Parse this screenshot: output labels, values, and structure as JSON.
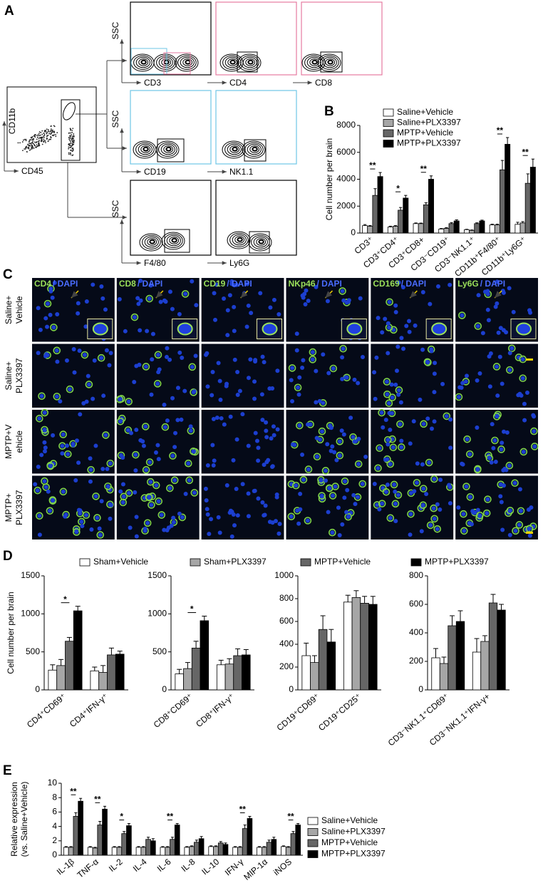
{
  "panel_labels": [
    "A",
    "B",
    "C",
    "D",
    "E"
  ],
  "flow": {
    "dot_plot": {
      "y": "CD11b",
      "x": "CD45"
    },
    "gates": [
      {
        "y": "SSC",
        "x": "CD3"
      },
      {
        "x": "CD4"
      },
      {
        "x": "CD8"
      },
      {
        "y": "SSC",
        "x": "CD19"
      },
      {
        "x": "NK1.1"
      },
      {
        "y": "SSC",
        "x": "F4/80"
      },
      {
        "x": "Ly6G"
      }
    ]
  },
  "microscopy": {
    "stains": [
      "CD4",
      "CD8",
      "CD19",
      "NKp46",
      "CD169",
      "Ly6G"
    ],
    "counterstain": "/ DAPI",
    "rows": [
      [
        "Saline+",
        "Vehicle"
      ],
      [
        "Saline+",
        "PLX3397"
      ],
      [
        "MPTP+V",
        "ehicle"
      ],
      [
        "MPTP+",
        "PLX3397"
      ]
    ]
  },
  "chart_data": [
    {
      "type": "bar",
      "ylabel": [
        "Cell number per brain"
      ],
      "legend": "top",
      "categories": [
        "CD3⁺",
        "CD3⁺CD4⁺",
        "CD3⁺CD8+",
        "CD3⁻CD19⁺",
        "CD3⁻NK1.1⁺",
        "CD11b⁺F4/80⁺",
        "CD11b⁺Ly6G⁺"
      ],
      "ylim": [
        0,
        8000
      ],
      "yticks": [
        0,
        2000,
        4000,
        6000,
        8000
      ],
      "series": [
        {
          "name": "Saline+Vehicle",
          "color": "#ffffff",
          "values": [
            550,
            450,
            700,
            300,
            250,
            600,
            650
          ],
          "errors": [
            80,
            60,
            50,
            40,
            30,
            60,
            150
          ]
        },
        {
          "name": "Saline+PLX3397",
          "color": "#a6a6a6",
          "values": [
            500,
            500,
            700,
            350,
            200,
            600,
            750
          ],
          "errors": [
            60,
            50,
            40,
            50,
            30,
            60,
            100
          ]
        },
        {
          "name": "MPTP+Vehicle",
          "color": "#666666",
          "values": [
            2800,
            1700,
            2100,
            700,
            700,
            4700,
            3700
          ],
          "errors": [
            500,
            200,
            150,
            80,
            60,
            700,
            700
          ]
        },
        {
          "name": "MPTP+PLX3397",
          "color": "#000000",
          "values": [
            4200,
            2600,
            4000,
            900,
            900,
            6600,
            4900
          ],
          "errors": [
            300,
            200,
            250,
            80,
            60,
            500,
            600
          ]
        }
      ],
      "annotations": [
        {
          "text": "**",
          "category": 0
        },
        {
          "text": "*",
          "category": 1
        },
        {
          "text": "**",
          "category": 2
        },
        {
          "text": "**",
          "category": 5
        },
        {
          "text": "**",
          "category": 6
        }
      ]
    },
    {
      "type": "bar",
      "ylabel": [
        "Cell number per brain"
      ],
      "legend": "top",
      "categories": [
        "CD4⁺CD69⁺",
        "CD4⁺IFN-γ⁺"
      ],
      "ylim": [
        0,
        1500
      ],
      "yticks": [
        0,
        500,
        1000,
        1500
      ],
      "series": [
        {
          "name": "Sham+Vehicle",
          "color": "#ffffff",
          "values": [
            260,
            250
          ],
          "errors": [
            70,
            50
          ]
        },
        {
          "name": "Sham+PLX3397",
          "color": "#a6a6a6",
          "values": [
            320,
            230
          ],
          "errors": [
            80,
            90
          ]
        },
        {
          "name": "MPTP+Vehicle",
          "color": "#666666",
          "values": [
            640,
            460
          ],
          "errors": [
            50,
            90
          ]
        },
        {
          "name": "MPTP+PLX3397",
          "color": "#000000",
          "values": [
            1040,
            470
          ],
          "errors": [
            60,
            40
          ]
        }
      ],
      "annotations": [
        {
          "text": "*",
          "category": 0
        }
      ]
    },
    {
      "type": "bar",
      "categories": [
        "CD8⁺CD69⁺",
        "CD8⁺IFN-γ⁺"
      ],
      "ylim": [
        0,
        1500
      ],
      "yticks": [
        0,
        500,
        1000,
        1500
      ],
      "series": [
        {
          "color": "#ffffff",
          "values": [
            210,
            330
          ],
          "errors": [
            60,
            60
          ]
        },
        {
          "color": "#a6a6a6",
          "values": [
            280,
            340
          ],
          "errors": [
            80,
            70
          ]
        },
        {
          "color": "#666666",
          "values": [
            550,
            450
          ],
          "errors": [
            90,
            90
          ]
        },
        {
          "color": "#000000",
          "values": [
            910,
            460
          ],
          "errors": [
            60,
            70
          ]
        }
      ],
      "annotations": [
        {
          "text": "*",
          "category": 0
        }
      ]
    },
    {
      "type": "bar",
      "categories": [
        "CD19⁺CD69⁺",
        "CD19⁺CD25⁺"
      ],
      "ylim": [
        0,
        1000
      ],
      "yticks": [
        0,
        200,
        400,
        600,
        800,
        1000
      ],
      "series": [
        {
          "color": "#ffffff",
          "values": [
            300,
            770
          ],
          "errors": [
            110,
            60
          ]
        },
        {
          "color": "#a6a6a6",
          "values": [
            240,
            810
          ],
          "errors": [
            60,
            60
          ]
        },
        {
          "color": "#666666",
          "values": [
            530,
            760
          ],
          "errors": [
            120,
            60
          ]
        },
        {
          "color": "#000000",
          "values": [
            420,
            750
          ],
          "errors": [
            110,
            70
          ]
        }
      ]
    },
    {
      "type": "bar",
      "categories": [
        "CD3⁻NK1.1⁺CD69⁺",
        "CD3⁻NK1.1⁺IFN-γ+"
      ],
      "ylim": [
        0,
        800
      ],
      "yticks": [
        0,
        200,
        400,
        600,
        800
      ],
      "series": [
        {
          "color": "#ffffff",
          "values": [
            225,
            265
          ],
          "errors": [
            65,
            95
          ]
        },
        {
          "color": "#a6a6a6",
          "values": [
            185,
            340
          ],
          "errors": [
            45,
            40
          ]
        },
        {
          "color": "#666666",
          "values": [
            450,
            610
          ],
          "errors": [
            70,
            60
          ]
        },
        {
          "color": "#000000",
          "values": [
            480,
            560
          ],
          "errors": [
            75,
            40
          ]
        }
      ]
    },
    {
      "type": "bar",
      "ylabel": [
        "Relative expression",
        "(vs. Saline+Vehicle)"
      ],
      "legend": "right",
      "categories": [
        "IL-1β",
        "TNF-α",
        "IL-2",
        "IL-4",
        "IL-6",
        "IL-8",
        "IL-10",
        "IFN-γ",
        "MIP-1α",
        "iNOS"
      ],
      "ylim": [
        0,
        10
      ],
      "yticks": [
        0,
        2,
        4,
        6,
        8,
        10
      ],
      "series": [
        {
          "name": "Saline+Vehicle",
          "color": "#ffffff",
          "values": [
            1.1,
            1.1,
            1.1,
            1.1,
            1.1,
            1.1,
            1.2,
            1.1,
            1.1,
            1.2
          ],
          "errors": [
            0.1,
            0.1,
            0.1,
            0.1,
            0.1,
            0.1,
            0.1,
            0.1,
            0.1,
            0.1
          ]
        },
        {
          "name": "Saline+PLX3397",
          "color": "#a6a6a6",
          "values": [
            1.1,
            1.0,
            1.1,
            1.1,
            1.1,
            1.2,
            1.2,
            1.1,
            1.1,
            1.1
          ],
          "errors": [
            0.1,
            0.1,
            0.1,
            0.1,
            0.1,
            0.1,
            0.1,
            0.1,
            0.1,
            0.1
          ]
        },
        {
          "name": "MPTP+Vehicle",
          "color": "#666666",
          "values": [
            5.4,
            4.2,
            3.0,
            2.2,
            2.2,
            1.8,
            1.7,
            3.7,
            1.8,
            3.0
          ],
          "errors": [
            0.5,
            0.5,
            0.3,
            0.3,
            0.3,
            0.3,
            0.2,
            0.5,
            0.3,
            0.3
          ]
        },
        {
          "name": "MPTP+PLX3397",
          "color": "#000000",
          "values": [
            7.5,
            6.4,
            4.1,
            2.0,
            4.2,
            2.3,
            1.5,
            5.1,
            2.2,
            4.2
          ],
          "errors": [
            0.4,
            0.4,
            0.3,
            0.3,
            0.2,
            0.3,
            0.2,
            0.3,
            0.3,
            0.2
          ]
        }
      ],
      "annotations": [
        {
          "text": "**",
          "category": 0
        },
        {
          "text": "**",
          "category": 1
        },
        {
          "text": "*",
          "category": 2
        },
        {
          "text": "**",
          "category": 4
        },
        {
          "text": "**",
          "category": 7
        },
        {
          "text": "**",
          "category": 9
        }
      ]
    }
  ]
}
